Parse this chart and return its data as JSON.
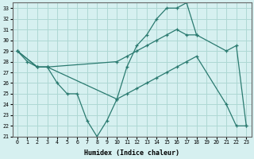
{
  "xlabel": "Humidex (Indice chaleur)",
  "xlim": [
    -0.5,
    23.5
  ],
  "ylim": [
    21,
    33.5
  ],
  "yticks": [
    21,
    22,
    23,
    24,
    25,
    26,
    27,
    28,
    29,
    30,
    31,
    32,
    33
  ],
  "xticks": [
    0,
    1,
    2,
    3,
    4,
    5,
    6,
    7,
    8,
    9,
    10,
    11,
    12,
    13,
    14,
    15,
    16,
    17,
    18,
    19,
    20,
    21,
    22,
    23
  ],
  "background_color": "#d6f0f0",
  "grid_color": "#aed8d4",
  "line_color": "#2a7a70",
  "line1_x": [
    0,
    1,
    2,
    3,
    4,
    5,
    6,
    7,
    8,
    9,
    10,
    11,
    12,
    13,
    14,
    15,
    16,
    17,
    18,
    19,
    20,
    21,
    22,
    23
  ],
  "line1_y": [
    29,
    28,
    27.5,
    27.5,
    26,
    25,
    25,
    22.5,
    21,
    22.5,
    24.5,
    27.5,
    29.5,
    30.5,
    32,
    33,
    33,
    33.5,
    30.5,
    null,
    null,
    null,
    null,
    null
  ],
  "line2_x": [
    0,
    2,
    3,
    10,
    11,
    12,
    13,
    14,
    15,
    16,
    17,
    18,
    21,
    22,
    23
  ],
  "line2_y": [
    29,
    27.5,
    27.5,
    28,
    28.5,
    29,
    29.5,
    30,
    30.5,
    31,
    30.5,
    30.5,
    29,
    29.5,
    22
  ],
  "line3_x": [
    0,
    2,
    3,
    10,
    11,
    12,
    13,
    14,
    15,
    16,
    17,
    18,
    21,
    22,
    23
  ],
  "line3_y": [
    29,
    27.5,
    27.5,
    24.5,
    25,
    25.5,
    26,
    26.5,
    27,
    27.5,
    28,
    28.5,
    24,
    22,
    22
  ]
}
